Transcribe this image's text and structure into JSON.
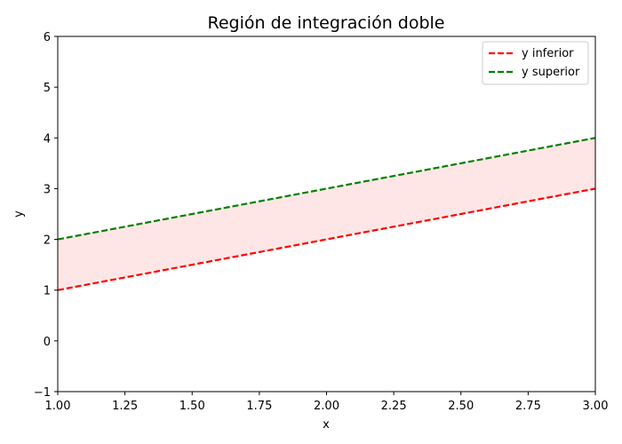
{
  "chart_data": {
    "type": "line",
    "title": "Región de integración doble",
    "xlabel": "x",
    "ylabel": "y",
    "xlim": [
      1.0,
      3.0
    ],
    "ylim": [
      -1,
      6
    ],
    "x_ticks": [
      1.0,
      1.25,
      1.5,
      1.75,
      2.0,
      2.25,
      2.5,
      2.75,
      3.0
    ],
    "x_tick_labels": [
      "1.00",
      "1.25",
      "1.50",
      "1.75",
      "2.00",
      "2.25",
      "2.50",
      "2.75",
      "3.00"
    ],
    "y_ticks": [
      -1,
      0,
      1,
      2,
      3,
      4,
      5,
      6
    ],
    "y_tick_labels": [
      "−1",
      "0",
      "1",
      "2",
      "3",
      "4",
      "5",
      "6"
    ],
    "grid": false,
    "legend_position": "top-right",
    "series": [
      {
        "name": "y inferior",
        "color": "#ff0000",
        "style": "dashed",
        "x": [
          1.0,
          1.5,
          2.0,
          2.5,
          3.0
        ],
        "y": [
          1.0,
          1.5,
          2.0,
          2.5,
          3.0
        ]
      },
      {
        "name": "y superior",
        "color": "#008000",
        "style": "dashed",
        "x": [
          1.0,
          1.5,
          2.0,
          2.5,
          3.0
        ],
        "y": [
          2.0,
          2.5,
          3.0,
          3.5,
          4.0
        ]
      }
    ],
    "fill_between": {
      "lower_series": "y inferior",
      "upper_series": "y superior",
      "color": "#ffe6e6"
    }
  }
}
